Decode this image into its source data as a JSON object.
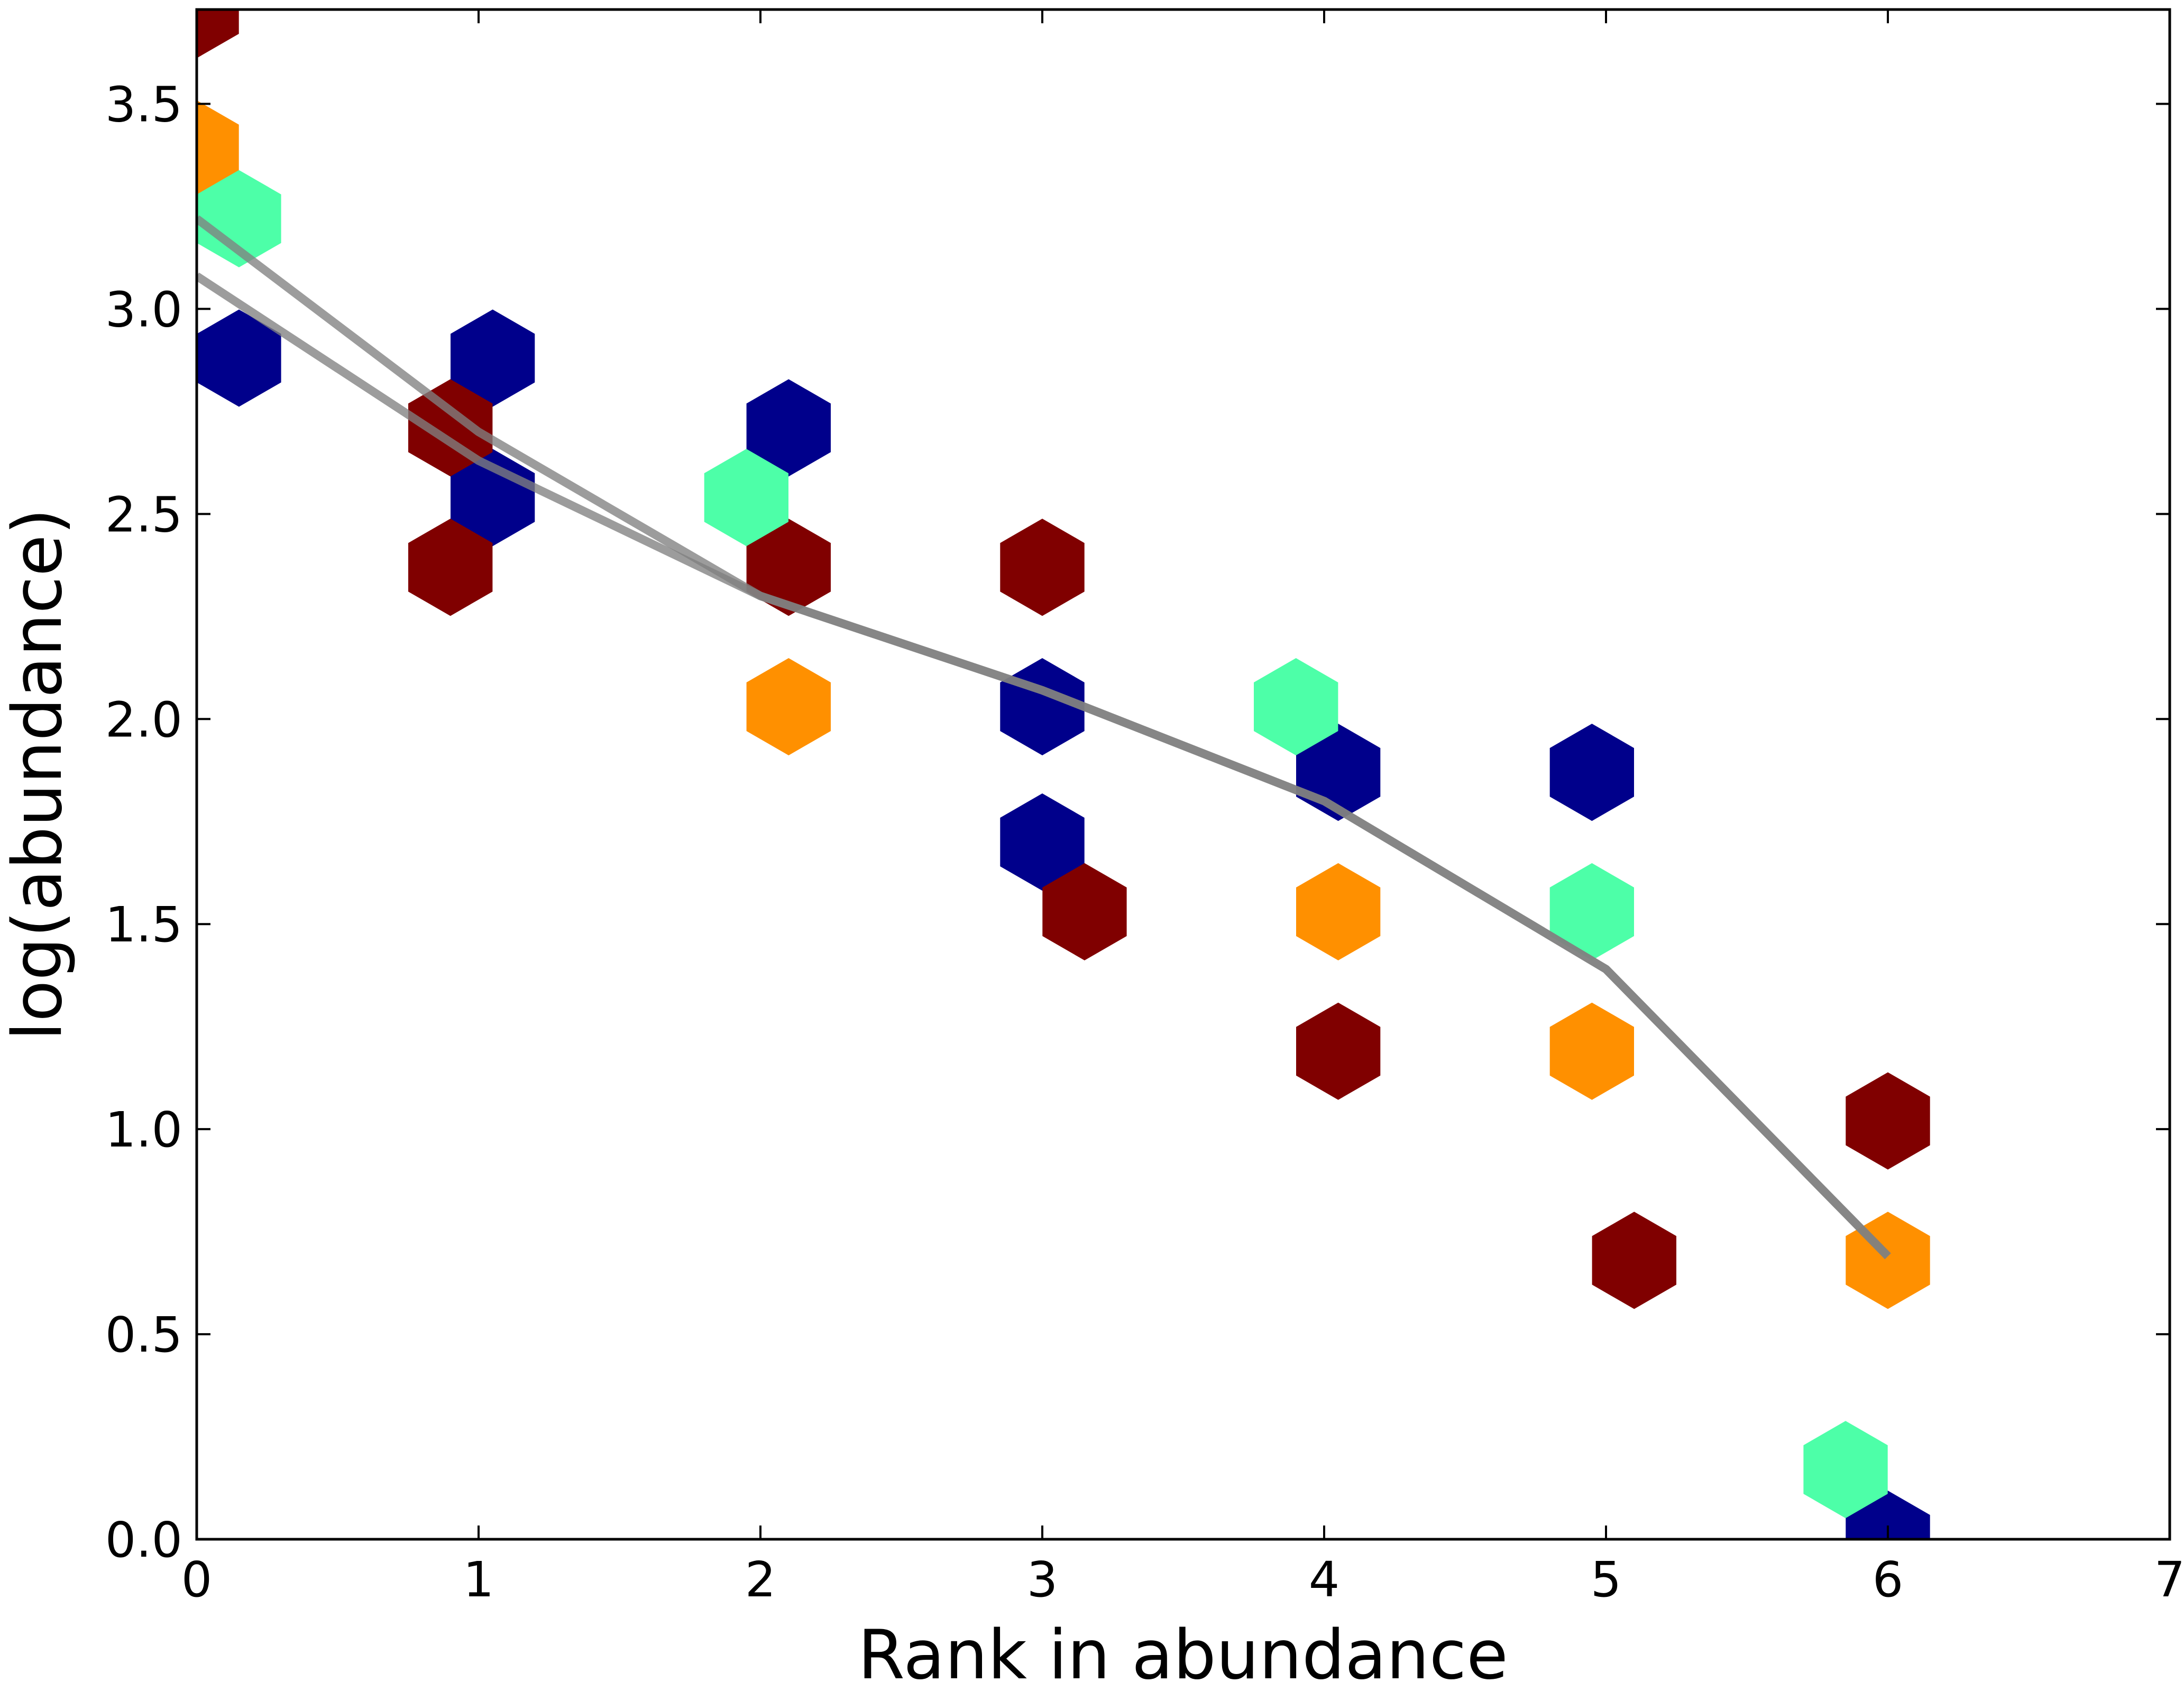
{
  "chart_data": {
    "type": "scatter",
    "xlabel": "Rank in abundance",
    "ylabel": "log(abundance)",
    "xlim": [
      0,
      7
    ],
    "ylim": [
      0,
      3.73
    ],
    "x_ticks": [
      "0",
      "1",
      "2",
      "3",
      "4",
      "5",
      "6",
      "7"
    ],
    "y_ticks": [
      "0.0",
      "0.5",
      "1.0",
      "1.5",
      "2.0",
      "2.5",
      "3.0",
      "3.5"
    ],
    "grid": false,
    "marker": "hexagon",
    "series": [
      {
        "color": "#00008b",
        "points": [
          [
            0.15,
            2.88
          ],
          [
            1.05,
            2.88
          ],
          [
            1.05,
            2.54
          ],
          [
            2.1,
            2.71
          ],
          [
            3.0,
            2.03
          ],
          [
            3.0,
            1.7
          ],
          [
            4.05,
            1.87
          ],
          [
            4.95,
            1.87
          ],
          [
            6.0,
            0.0
          ]
        ]
      },
      {
        "color": "#800000",
        "points": [
          [
            0.0,
            3.73
          ],
          [
            0.9,
            2.71
          ],
          [
            0.9,
            2.37
          ],
          [
            2.1,
            2.37
          ],
          [
            3.0,
            2.37
          ],
          [
            3.15,
            1.53
          ],
          [
            4.05,
            1.19
          ],
          [
            5.1,
            0.68
          ],
          [
            6.0,
            1.02
          ]
        ]
      },
      {
        "color": "#ff9000",
        "points": [
          [
            0.0,
            3.39
          ],
          [
            2.1,
            2.03
          ],
          [
            4.05,
            1.53
          ],
          [
            4.95,
            1.19
          ],
          [
            6.0,
            0.68
          ]
        ]
      },
      {
        "color": "#4dffa8",
        "points": [
          [
            0.15,
            3.22
          ],
          [
            1.95,
            2.54
          ],
          [
            3.9,
            2.03
          ],
          [
            4.95,
            1.53
          ],
          [
            5.85,
            0.17
          ]
        ]
      }
    ],
    "lines": [
      {
        "color": "#808080",
        "points": [
          [
            0,
            3.22
          ],
          [
            1,
            2.7
          ],
          [
            2,
            2.3
          ],
          [
            3,
            2.07
          ],
          [
            4,
            1.8
          ],
          [
            5,
            1.39
          ],
          [
            6,
            0.69
          ]
        ]
      },
      {
        "color": "#808080",
        "points": [
          [
            0,
            3.08
          ],
          [
            1,
            2.63
          ],
          [
            2,
            2.3
          ],
          [
            3,
            2.07
          ],
          [
            4,
            1.8
          ],
          [
            5,
            1.39
          ],
          [
            6,
            0.69
          ]
        ]
      }
    ]
  }
}
